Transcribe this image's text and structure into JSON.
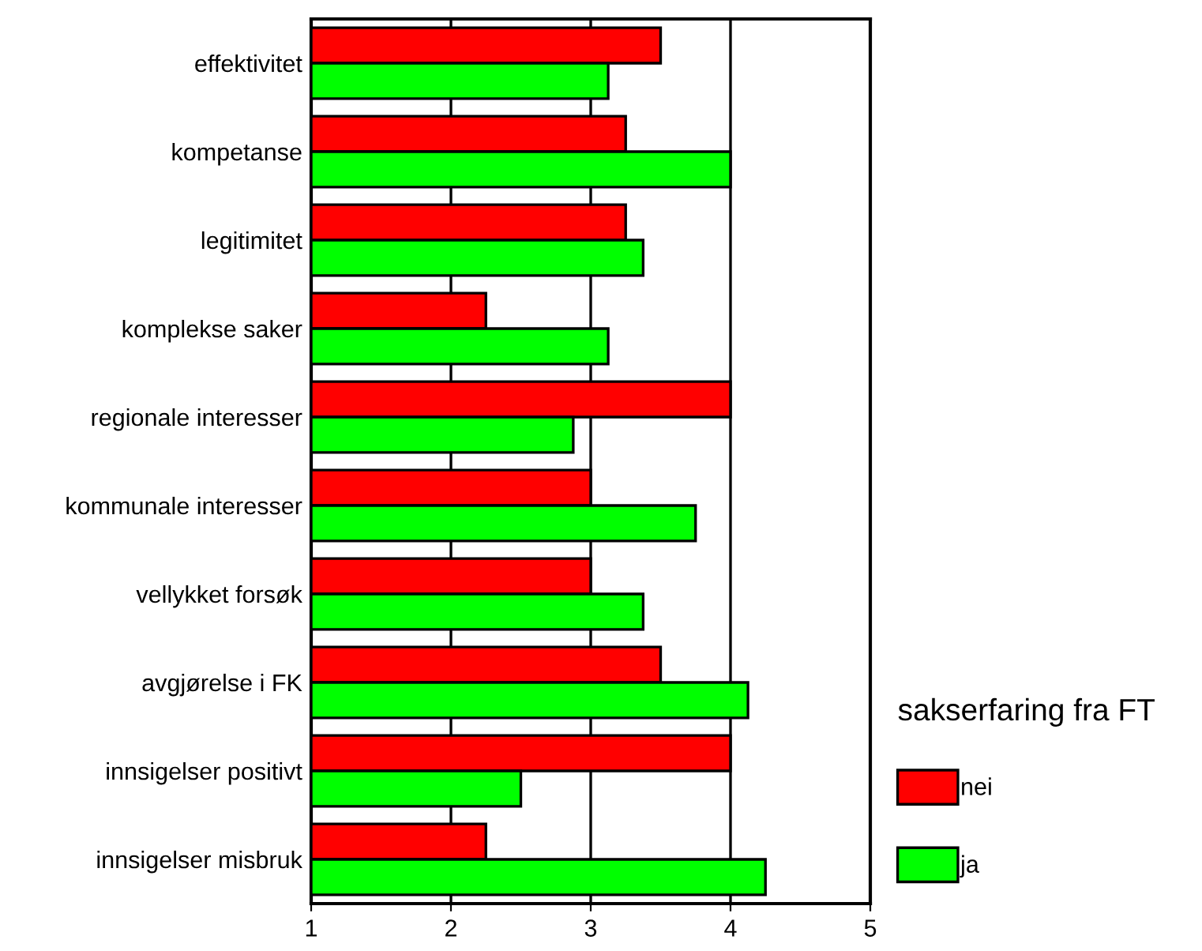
{
  "chart_data": {
    "type": "bar",
    "orientation": "horizontal",
    "categories": [
      "effektivitet",
      "kompetanse",
      "legitimitet",
      "komplekse saker",
      "regionale interesser",
      "kommunale interesser",
      "vellykket forsøk",
      "avgjørelse i FK",
      "innsigelser positivt",
      "innsigelser misbruk"
    ],
    "series": [
      {
        "name": "nei",
        "color": "#ff0000",
        "values": [
          3.5,
          3.25,
          3.25,
          2.25,
          4.0,
          3.0,
          3.0,
          3.5,
          4.0,
          2.25
        ]
      },
      {
        "name": "ja",
        "color": "#00ff00",
        "values": [
          3.125,
          4.0,
          3.375,
          3.125,
          2.875,
          3.75,
          3.375,
          4.125,
          2.5,
          4.25
        ]
      }
    ],
    "xlim": [
      1,
      5
    ],
    "xticks": [
      1,
      2,
      3,
      4,
      5
    ],
    "grid": "x",
    "legend": "bottom right",
    "legend_title": "sakserfaring fra FT"
  }
}
